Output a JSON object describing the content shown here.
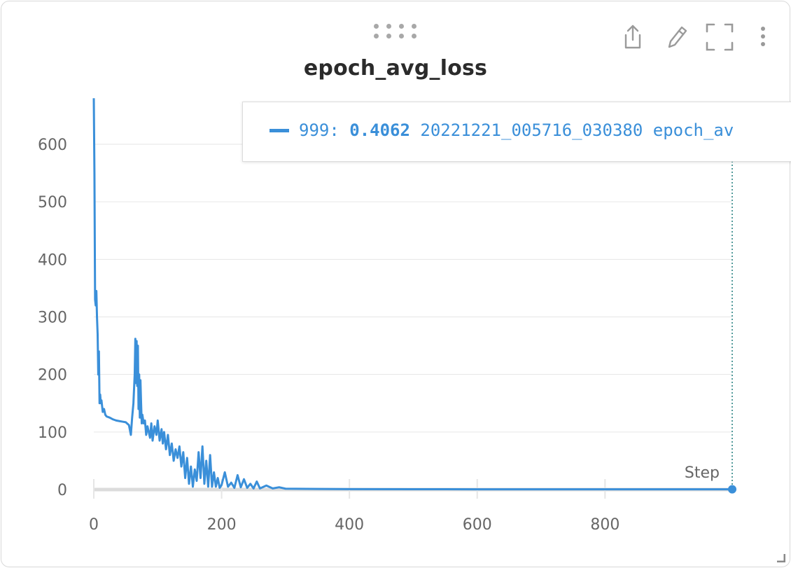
{
  "card": {
    "title": "epoch_avg_loss"
  },
  "toolbar": {
    "icons": [
      "download-icon",
      "edit-icon",
      "fullscreen-icon",
      "more-vertical-icon"
    ]
  },
  "tooltip": {
    "step": "999:",
    "value": "0.4062",
    "run": "20221221_005716_030380 epoch_av"
  },
  "colors": {
    "series": "#3a8fd9",
    "grid": "#e6e6e6",
    "tick_text": "#666666",
    "crosshair": "#1a7a7a"
  },
  "chart_data": {
    "type": "line",
    "title": "epoch_avg_loss",
    "xlabel": "Step",
    "ylabel": "",
    "xlim": [
      0,
      999
    ],
    "ylim": [
      0,
      680
    ],
    "x_ticks": [
      "0",
      "200",
      "400",
      "600",
      "800"
    ],
    "y_ticks": [
      "0",
      "100",
      "200",
      "300",
      "400",
      "500",
      "600"
    ],
    "grid": true,
    "highlight": {
      "x": 999,
      "y": 0.4062
    },
    "series": [
      {
        "x": [
          0,
          1,
          2,
          3,
          4,
          5,
          6,
          7,
          8,
          9,
          10,
          11,
          12,
          14,
          16,
          18,
          20,
          25,
          30,
          35,
          40,
          45,
          50,
          55,
          58,
          60,
          62,
          64,
          65,
          66,
          67,
          68,
          69,
          70,
          71,
          72,
          73,
          74,
          75,
          76,
          78,
          80,
          82,
          84,
          86,
          88,
          90,
          92,
          95,
          98,
          100,
          103,
          106,
          108,
          110,
          113,
          116,
          119,
          122,
          125,
          128,
          131,
          134,
          137,
          140,
          143,
          146,
          149,
          152,
          155,
          158,
          161,
          164,
          167,
          170,
          173,
          176,
          179,
          182,
          185,
          188,
          191,
          194,
          197,
          200,
          205,
          210,
          215,
          220,
          225,
          230,
          235,
          240,
          245,
          250,
          255,
          260,
          270,
          280,
          290,
          300,
          350,
          400,
          500,
          600,
          700,
          800,
          900,
          999
        ],
        "y": [
          680,
          550,
          330,
          320,
          345,
          300,
          270,
          200,
          240,
          150,
          165,
          150,
          155,
          135,
          140,
          130,
          127,
          125,
          122,
          120,
          119,
          118,
          117,
          112,
          95,
          125,
          150,
          200,
          262,
          185,
          258,
          180,
          250,
          140,
          200,
          125,
          190,
          150,
          115,
          130,
          115,
          120,
          95,
          110,
          100,
          90,
          115,
          85,
          110,
          95,
          120,
          85,
          105,
          80,
          100,
          70,
          95,
          60,
          80,
          50,
          70,
          55,
          75,
          40,
          65,
          20,
          55,
          10,
          40,
          5,
          35,
          15,
          65,
          20,
          75,
          10,
          50,
          5,
          60,
          5,
          30,
          5,
          20,
          3,
          8,
          30,
          5,
          12,
          3,
          25,
          4,
          18,
          3,
          10,
          2,
          14,
          2,
          7,
          2,
          4,
          1.5,
          1.0,
          0.8,
          0.6,
          0.5,
          0.45,
          0.42,
          0.41,
          0.4062
        ]
      }
    ]
  }
}
